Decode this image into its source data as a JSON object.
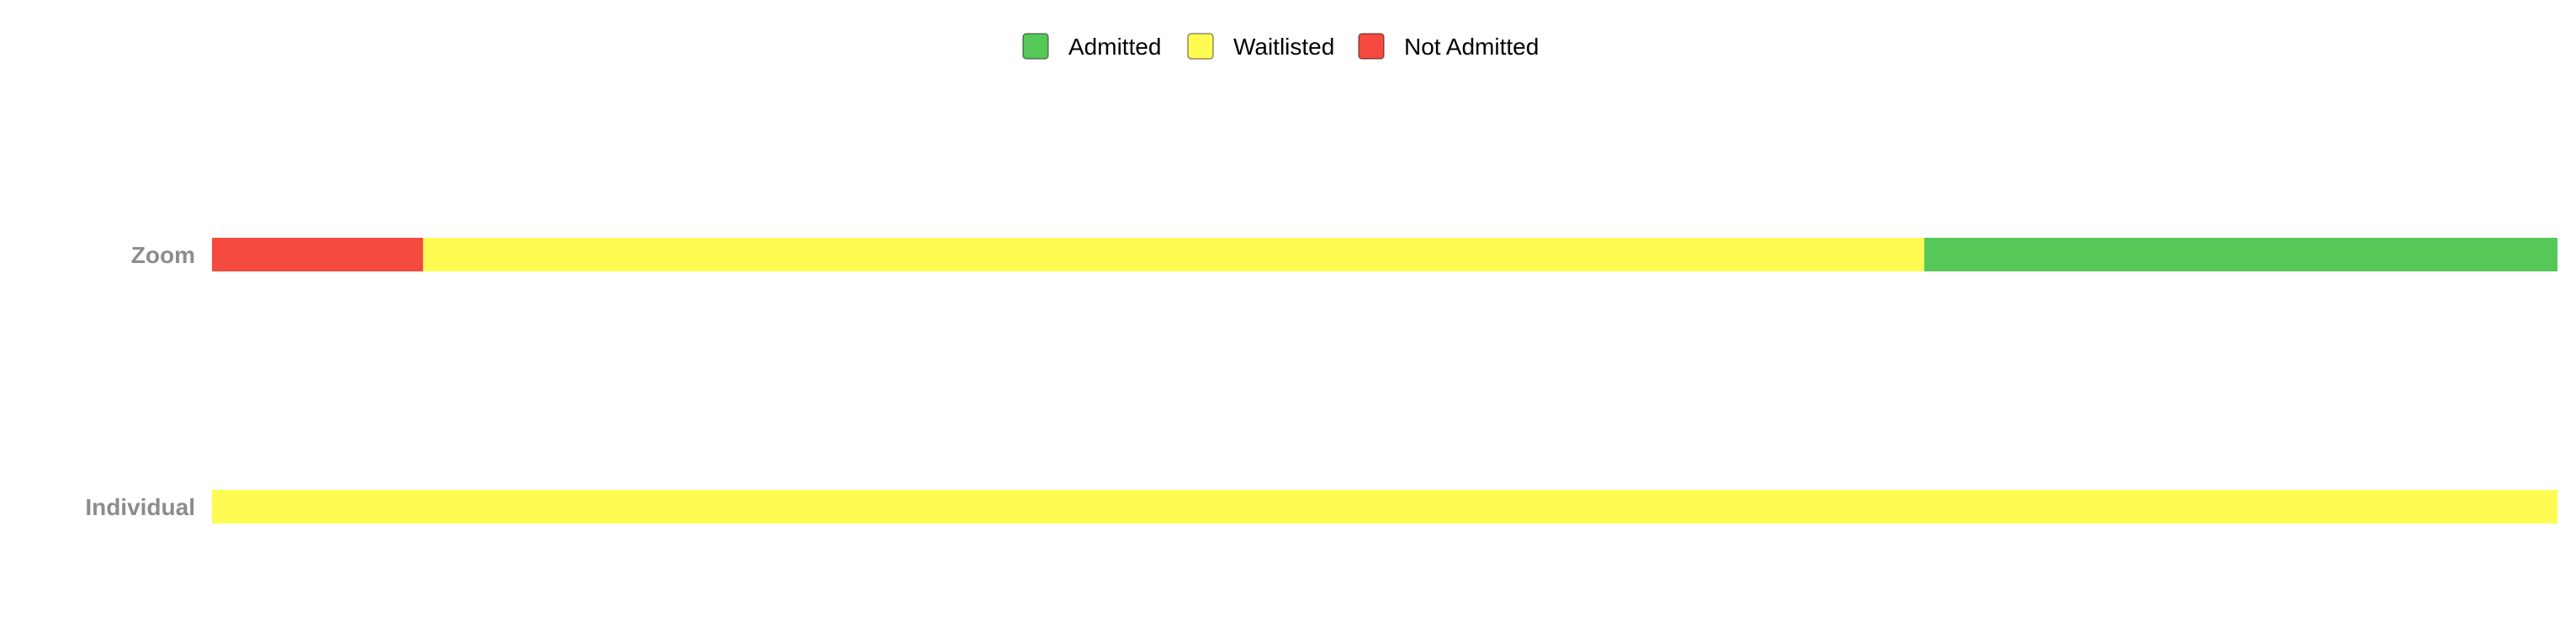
{
  "chart_data": {
    "type": "bar",
    "orientation": "horizontal",
    "stacked": "percent",
    "categories": [
      "Zoom",
      "Individual"
    ],
    "series": [
      {
        "name": "Not Admitted",
        "values": [
          9,
          0
        ],
        "color": "#f44a40"
      },
      {
        "name": "Waitlisted",
        "values": [
          64,
          100
        ],
        "color": "#fefc53"
      },
      {
        "name": "Admitted",
        "values": [
          27,
          0
        ],
        "color": "#56c857"
      }
    ],
    "legend": {
      "placement": "top-center",
      "order": [
        "Admitted",
        "Waitlisted",
        "Not Admitted"
      ]
    },
    "xlim": [
      0,
      100
    ],
    "grid": false,
    "title": "",
    "xlabel": "",
    "ylabel": ""
  }
}
